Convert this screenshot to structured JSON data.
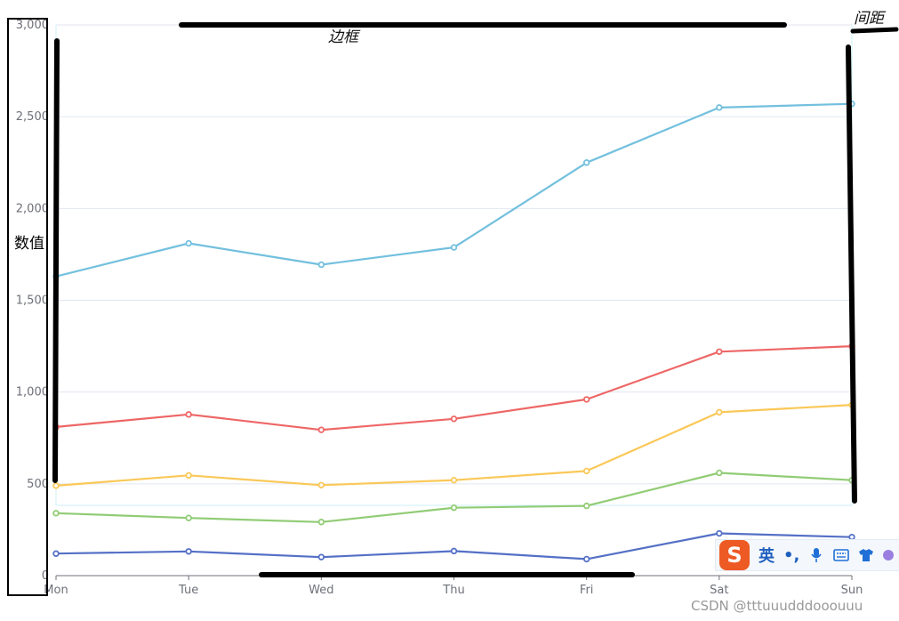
{
  "chart_data": {
    "type": "line",
    "title": "",
    "xlabel": "",
    "ylabel": "数值",
    "categories": [
      "Mon",
      "Tue",
      "Wed",
      "Thu",
      "Fri",
      "Sat",
      "Sun"
    ],
    "ylim": [
      0,
      3000
    ],
    "yticks": [
      0,
      500,
      1000,
      1500,
      2000,
      2500,
      3000
    ],
    "ytick_labels": [
      "0",
      "500",
      "1,000",
      "1,500",
      "2,000",
      "2,500",
      "3,000"
    ],
    "grid": true,
    "series": [
      {
        "color": "#5470c6",
        "values": [
          120,
          132,
          101,
          134,
          90,
          230,
          210
        ]
      },
      {
        "color": "#91cc75",
        "values": [
          340,
          314,
          292,
          370,
          380,
          560,
          520
        ]
      },
      {
        "color": "#fac858",
        "values": [
          490,
          546,
          493,
          520,
          570,
          890,
          930
        ]
      },
      {
        "color": "#ee6666",
        "values": [
          810,
          878,
          794,
          854,
          960,
          1220,
          1250
        ]
      },
      {
        "color": "#73c0de",
        "values": [
          1630,
          1810,
          1694,
          1788,
          2250,
          2550,
          2570
        ]
      }
    ]
  },
  "annotations": {
    "border_label": "边框",
    "spacing_label": "间距"
  },
  "watermark": "CSDN @tttuuudddooouuu",
  "ime_toolbar": {
    "logo": "S",
    "lang": "英",
    "punct": "•,",
    "mic_icon": "microphone-icon",
    "keyboard_icon": "keyboard-icon",
    "skin_icon": "shirt-icon"
  },
  "colors": {
    "axis": "#6e7079",
    "grid": "#e0e6f1",
    "annotation_stroke": "#000000",
    "plot_border": "#ccf2f7"
  }
}
